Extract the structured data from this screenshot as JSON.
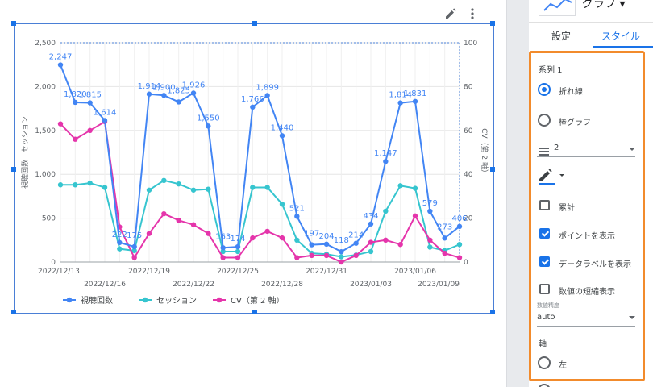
{
  "chart_data": {
    "type": "line",
    "x": [
      "2022/12/13",
      "2022/12/14",
      "2022/12/15",
      "2022/12/16",
      "2022/12/17",
      "2022/12/18",
      "2022/12/19",
      "2022/12/20",
      "2022/12/21",
      "2022/12/22",
      "2022/12/23",
      "2022/12/24",
      "2022/12/25",
      "2022/12/26",
      "2022/12/27",
      "2022/12/28",
      "2022/12/29",
      "2022/12/30",
      "2022/12/31",
      "2023/01/01",
      "2023/01/02",
      "2023/01/03",
      "2023/01/04",
      "2023/01/05",
      "2023/01/06",
      "2023/01/07",
      "2023/01/08",
      "2023/01/09"
    ],
    "xticks_top": [
      "2022/12/13",
      "2022/12/19",
      "2022/12/25",
      "2022/12/31",
      "2023/01/06"
    ],
    "xticks_bottom": [
      "2022/12/16",
      "2022/12/22",
      "2022/12/28",
      "2023/01/03",
      "2023/01/09"
    ],
    "ylabel": "視聴回数 | セッション",
    "y2label": "CV（第 2 軸）",
    "ylim": [
      0,
      2500
    ],
    "y2lim": [
      0,
      100
    ],
    "yticks": [
      "0",
      "500",
      "1,000",
      "1,500",
      "2,000",
      "2,500"
    ],
    "y2ticks": [
      "0",
      "20",
      "40",
      "60",
      "80",
      "100"
    ],
    "grid": true,
    "legend_position": "bottom-left",
    "series": [
      {
        "name": "視聴回数",
        "color": "#4285f4",
        "axis": "left",
        "labels": true,
        "values": [
          2247,
          1820,
          1815,
          1614,
          222,
          175,
          1914,
          1900,
          1825,
          1926,
          1550,
          163,
          174,
          1766,
          1899,
          1440,
          521,
          197,
          204,
          118,
          214,
          434,
          1147,
          1814,
          1831,
          579,
          273,
          406
        ],
        "data_labels": [
          "2,247",
          "1,820",
          "1,815",
          "1,614",
          "222",
          "175",
          "1,914",
          "1,900",
          "1,825",
          "1,926",
          "1,550",
          "163",
          "174",
          "1,766",
          "1,899",
          "1,440",
          "521",
          "197",
          "204",
          "118",
          "214",
          "434",
          "1,147",
          "1,814",
          "1,831",
          "579",
          "273",
          "406"
        ]
      },
      {
        "name": "セッション",
        "color": "#36c5cf",
        "axis": "left",
        "labels": false,
        "values": [
          880,
          880,
          900,
          850,
          150,
          130,
          820,
          930,
          890,
          820,
          830,
          120,
          120,
          850,
          850,
          660,
          250,
          100,
          90,
          60,
          80,
          120,
          580,
          870,
          840,
          170,
          130,
          200
        ]
      },
      {
        "name": "CV（第 2 軸）",
        "color": "#e535ab",
        "axis": "right",
        "labels": false,
        "values": [
          63,
          56,
          60,
          64,
          16,
          2,
          13,
          22,
          19,
          17,
          13,
          2,
          2,
          11,
          14,
          11,
          2,
          3,
          3,
          0,
          3,
          9,
          10,
          8,
          21,
          10,
          4,
          2
        ]
      }
    ]
  },
  "panel": {
    "header_title": "グラフ ▾",
    "tabs": [
      "設定",
      "スタイル"
    ],
    "series_label": "系列 1",
    "radio_line": "折れ線",
    "radio_bar": "棒グラフ",
    "line_weight_value": "2",
    "cumulative": "累計",
    "show_points": "ポイントを表示",
    "show_data_labels": "データラベルを表示",
    "compact_numbers": "数値の短縮表示",
    "precision_label": "数値精度",
    "precision_value": "auto",
    "axis_label": "軸",
    "axis_left": "左"
  },
  "colors": {
    "accent": "#1a73e8",
    "highlight": "#f28b2c"
  }
}
